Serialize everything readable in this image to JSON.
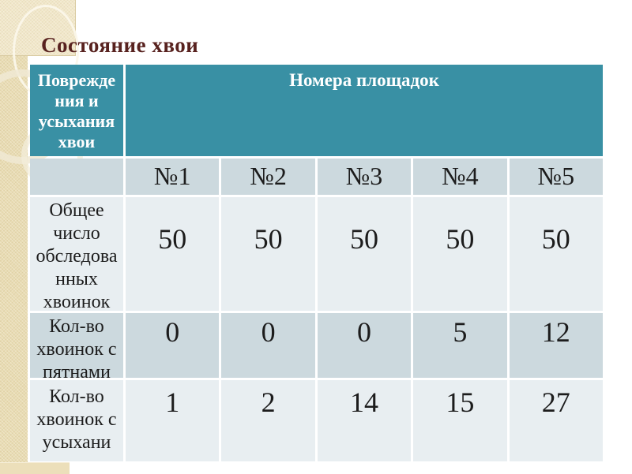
{
  "slide": {
    "title": "Состояние хвои"
  },
  "table": {
    "corner_header": "Поврежде\nния и\nусыхания\nхвои",
    "group_header": "Номера площадок",
    "columns": [
      "№1",
      "№2",
      "№3",
      "№4",
      "№5"
    ],
    "rows": [
      {
        "label": "Общее\nчисло\nобследова\nнных\nхвоинок",
        "values": [
          "50",
          "50",
          "50",
          "50",
          "50"
        ]
      },
      {
        "label": "Кол-во\nхвоинок с\nпятнами",
        "values": [
          "0",
          "0",
          "0",
          "5",
          "12"
        ]
      },
      {
        "label": "Кол-во\nхвоинок с\nусыхани",
        "values": [
          "1",
          "2",
          "14",
          "15",
          "27"
        ]
      }
    ]
  },
  "colors": {
    "header_teal": "#3990a4",
    "row_dark": "#ccd9de",
    "row_light": "#e8eef1",
    "title_maroon": "#58221f",
    "accent_beige": "#e9dcb3"
  }
}
